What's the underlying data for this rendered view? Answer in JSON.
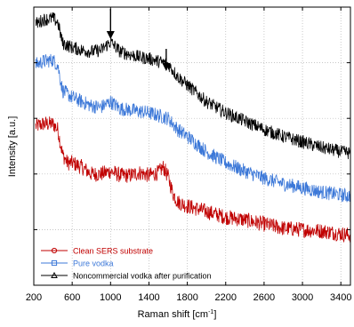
{
  "chart_data": {
    "type": "line",
    "title": "",
    "xlabel": "Raman shift [cm",
    "xlabel_superscript": "-1",
    "xlabel_suffix": "]",
    "ylabel": "Intensity [a.u.]",
    "xlim": [
      200,
      3500
    ],
    "ylim": [
      0,
      1
    ],
    "y_ticks_labeled": false,
    "grid": true,
    "grid_style": "dotted",
    "legend_position": "lower-left",
    "xticks": [
      "200",
      "600",
      "1000",
      "1400",
      "1800",
      "2200",
      "2600",
      "3000",
      "3400"
    ],
    "xtick_values": [
      200,
      600,
      1000,
      1400,
      1800,
      2200,
      2600,
      3000,
      3400
    ],
    "arrows_at_x": [
      1000,
      1580
    ],
    "series": [
      {
        "name": "Clean SERS substrate",
        "marker": "circle",
        "color": "#c00000",
        "noise": 0.028,
        "points": [
          [
            200,
            0.57
          ],
          [
            300,
            0.58
          ],
          [
            400,
            0.58
          ],
          [
            450,
            0.56
          ],
          [
            500,
            0.47
          ],
          [
            550,
            0.44
          ],
          [
            600,
            0.44
          ],
          [
            700,
            0.425
          ],
          [
            800,
            0.4
          ],
          [
            900,
            0.4
          ],
          [
            1000,
            0.41
          ],
          [
            1100,
            0.395
          ],
          [
            1200,
            0.395
          ],
          [
            1300,
            0.405
          ],
          [
            1400,
            0.395
          ],
          [
            1500,
            0.405
          ],
          [
            1550,
            0.425
          ],
          [
            1600,
            0.39
          ],
          [
            1650,
            0.33
          ],
          [
            1700,
            0.3
          ],
          [
            1800,
            0.285
          ],
          [
            2000,
            0.265
          ],
          [
            2200,
            0.245
          ],
          [
            2400,
            0.235
          ],
          [
            2600,
            0.22
          ],
          [
            2800,
            0.205
          ],
          [
            3000,
            0.2
          ],
          [
            3200,
            0.195
          ],
          [
            3400,
            0.185
          ],
          [
            3500,
            0.18
          ]
        ]
      },
      {
        "name": "Pure vodka",
        "marker": "square",
        "color": "#3c78d8",
        "noise": 0.026,
        "points": [
          [
            200,
            0.79
          ],
          [
            300,
            0.805
          ],
          [
            400,
            0.81
          ],
          [
            450,
            0.79
          ],
          [
            500,
            0.7
          ],
          [
            600,
            0.675
          ],
          [
            700,
            0.66
          ],
          [
            800,
            0.645
          ],
          [
            900,
            0.64
          ],
          [
            1000,
            0.66
          ],
          [
            1100,
            0.635
          ],
          [
            1200,
            0.63
          ],
          [
            1300,
            0.625
          ],
          [
            1400,
            0.62
          ],
          [
            1500,
            0.61
          ],
          [
            1600,
            0.6
          ],
          [
            1700,
            0.56
          ],
          [
            1800,
            0.535
          ],
          [
            2000,
            0.48
          ],
          [
            2200,
            0.44
          ],
          [
            2400,
            0.41
          ],
          [
            2600,
            0.385
          ],
          [
            2800,
            0.365
          ],
          [
            3000,
            0.35
          ],
          [
            3200,
            0.335
          ],
          [
            3400,
            0.325
          ],
          [
            3500,
            0.32
          ]
        ]
      },
      {
        "name": "Noncommercial vodka after purification",
        "marker": "triangle",
        "color": "#000000",
        "noise": 0.024,
        "points": [
          [
            200,
            0.935
          ],
          [
            300,
            0.955
          ],
          [
            400,
            0.96
          ],
          [
            450,
            0.945
          ],
          [
            500,
            0.87
          ],
          [
            600,
            0.855
          ],
          [
            700,
            0.845
          ],
          [
            800,
            0.84
          ],
          [
            900,
            0.845
          ],
          [
            1000,
            0.875
          ],
          [
            1100,
            0.84
          ],
          [
            1200,
            0.83
          ],
          [
            1300,
            0.82
          ],
          [
            1400,
            0.815
          ],
          [
            1500,
            0.805
          ],
          [
            1600,
            0.795
          ],
          [
            1700,
            0.75
          ],
          [
            1800,
            0.72
          ],
          [
            2000,
            0.66
          ],
          [
            2200,
            0.62
          ],
          [
            2400,
            0.59
          ],
          [
            2600,
            0.56
          ],
          [
            2800,
            0.535
          ],
          [
            3000,
            0.515
          ],
          [
            3200,
            0.495
          ],
          [
            3400,
            0.48
          ],
          [
            3500,
            0.475
          ]
        ]
      }
    ]
  }
}
